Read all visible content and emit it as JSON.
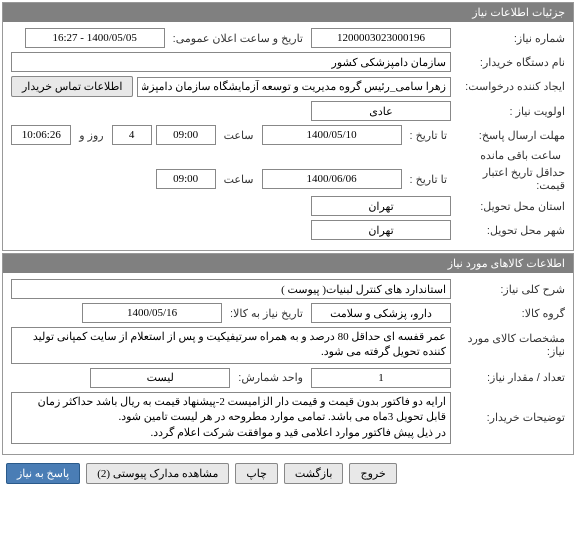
{
  "panel1": {
    "title": "جزئیات اطلاعات نیاز"
  },
  "need_number": {
    "label": "شماره نیاز:",
    "value": "1200003023000196"
  },
  "announce_date": {
    "label": "تاریخ و ساعت اعلان عمومی:",
    "value": "1400/05/05 - 16:27"
  },
  "buyer_org": {
    "label": "نام دستگاه خریدار:",
    "value": "سازمان دامپزشکی کشور"
  },
  "requester": {
    "label": "ایجاد کننده درخواست:",
    "value": "زهرا سامی_رئیس گروه مدیریت و توسعه آزمایشگاه سازمان دامپزشکی کشور"
  },
  "contact_btn": "اطلاعات تماس خریدار",
  "priority": {
    "label": "اولویت نیاز :",
    "value": "عادی"
  },
  "response_deadline": {
    "label": "مهلت ارسال پاسخ:",
    "to_date_label": "تا تاریخ :",
    "date": "1400/05/10",
    "time_label": "ساعت",
    "time": "09:00",
    "days": "4",
    "days_label": "روز و",
    "countdown": "10:06:26",
    "remaining_label": "ساعت باقی مانده"
  },
  "price_validity": {
    "label": "حداقل تاریخ اعتبار قیمت:",
    "to_date_label": "تا تاریخ :",
    "date": "1400/06/06",
    "time_label": "ساعت",
    "time": "09:00"
  },
  "delivery_province": {
    "label": "استان محل تحویل:",
    "value": "تهران"
  },
  "delivery_city": {
    "label": "شهر محل تحویل:",
    "value": "تهران"
  },
  "panel2": {
    "title": "اطلاعات کالاهای مورد نیاز"
  },
  "need_title": {
    "label": "شرح کلی نیاز:",
    "value": "استاندارد های کنترل لبنیات( پیوست )"
  },
  "goods_group": {
    "label": "گروه کالا:",
    "value": "دارو، پزشکی و سلامت"
  },
  "need_date": {
    "label": "تاریخ نیاز به کالا:",
    "value": "1400/05/16"
  },
  "goods_spec": {
    "label": "مشخصات کالای مورد نیاز:",
    "value": "عمر قفسه ای حداقل 80 درصد و به همراه سرتیفیکیت و پس از استعلام از سایت کمپانی تولید کننده تحویل گرفته می شود."
  },
  "quantity": {
    "label": "تعداد / مقدار نیاز:",
    "value": "1"
  },
  "unit": {
    "label": "واحد شمارش:",
    "value": "لیست"
  },
  "buyer_desc": {
    "label": "توضیحات خریدار:",
    "value": "ارایه دو فاکتور بدون قیمت و قیمت دار الزامیست 2-پیشنهاد قیمت به ریال باشد حداکثر زمان قابل تحویل 3ماه می باشد. تمامی موارد مطروحه در هر لیست تامین شود.\nدر ذیل پیش فاکتور موارد اعلامی قید و موافقت شرکت اعلام گردد."
  },
  "buttons": {
    "reply": "پاسخ به نیاز",
    "attachments": "مشاهده مدارک پیوستی (2)",
    "print": "چاپ",
    "back": "بازگشت",
    "exit": "خروج"
  }
}
